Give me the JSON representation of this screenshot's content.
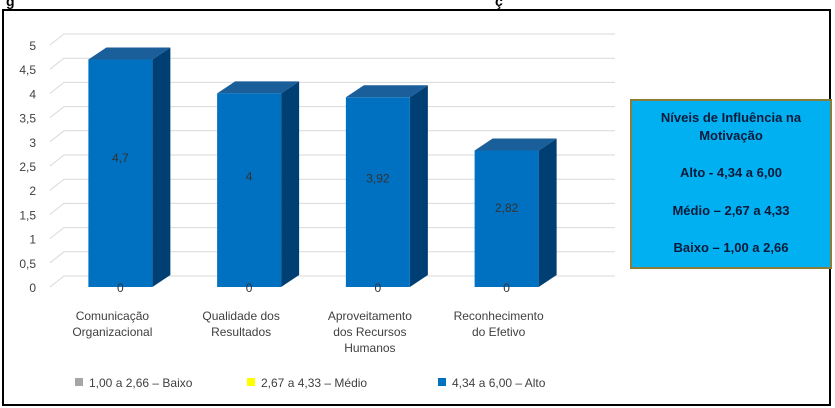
{
  "header": {
    "clipped_text": "g",
    "clipped_text_right": "ç"
  },
  "chart_data": {
    "type": "bar",
    "categories": [
      [
        "Comunicação",
        "Organizacional"
      ],
      [
        "Qualidade dos",
        "Resultados"
      ],
      [
        "Aproveitamento",
        "dos Recursos",
        "Humanos"
      ],
      [
        "Reconhecimento",
        "do Efetivo"
      ]
    ],
    "series": [
      {
        "name": "1,00 a 2,66 – Baixo",
        "color": "#a6a6a6",
        "values": [
          0,
          0,
          0,
          0
        ]
      },
      {
        "name": "2,67 a 4,33 – Médio",
        "color": "#ffff00",
        "values": [
          0,
          0,
          0,
          0
        ]
      },
      {
        "name": "4,34 a 6,00 – Alto",
        "color": "#0070c0",
        "values": [
          4.7,
          4,
          3.92,
          2.82
        ]
      }
    ],
    "data_labels": [
      "4,7",
      "4",
      "3,92",
      "2,82"
    ],
    "zero_labels": [
      "0",
      "0",
      "0",
      "0"
    ],
    "yticks": [
      "0",
      "0,5",
      "1",
      "1,5",
      "2",
      "2,5",
      "3",
      "3,5",
      "4",
      "4,5",
      "5"
    ],
    "ylim": [
      0,
      5
    ],
    "grid": true,
    "legend_position": "bottom"
  },
  "info_box": {
    "title": "Níveis de Influência na Motivação",
    "lines": [
      "Alto - 4,34 a 6,00",
      "Médio – 2,67 a 4,33",
      "Baixo – 1,00 a 2,66"
    ]
  },
  "colors": {
    "bar_front": "#0070c0",
    "bar_side": "#003f73",
    "bar_top": "#1a5e9a",
    "info_bg": "#00b0f0"
  }
}
